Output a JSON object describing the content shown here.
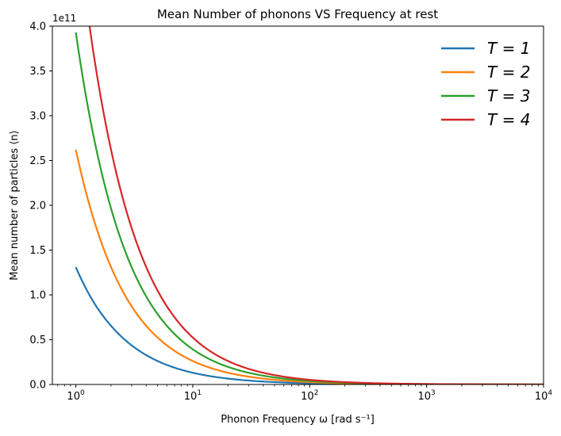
{
  "chart_data": {
    "type": "line",
    "title": "Mean Number of phonons VS Frequency at rest",
    "xlabel": "Phonon Frequency ω [rad s⁻¹]",
    "ylabel": "Mean number of particles ⟨n⟩",
    "y_offset_label": "1e11",
    "x_scale": "log",
    "xlim": [
      0.63,
      10000
    ],
    "ylim": [
      0,
      400000000000.0
    ],
    "x_ticks": [
      {
        "value": 1,
        "base": "10",
        "exp": "0"
      },
      {
        "value": 10,
        "base": "10",
        "exp": "1"
      },
      {
        "value": 100,
        "base": "10",
        "exp": "2"
      },
      {
        "value": 1000,
        "base": "10",
        "exp": "3"
      },
      {
        "value": 10000,
        "base": "10",
        "exp": "4"
      }
    ],
    "y_ticks": [
      {
        "value": 0,
        "label": "0.0"
      },
      {
        "value": 50000000000.0,
        "label": "0.5"
      },
      {
        "value": 100000000000.0,
        "label": "1.0"
      },
      {
        "value": 150000000000.0,
        "label": "1.5"
      },
      {
        "value": 200000000000.0,
        "label": "2.0"
      },
      {
        "value": 250000000000.0,
        "label": "2.5"
      },
      {
        "value": 300000000000.0,
        "label": "3.0"
      },
      {
        "value": 350000000000.0,
        "label": "3.5"
      },
      {
        "value": 400000000000.0,
        "label": "4.0"
      }
    ],
    "grid": false,
    "legend_position": "top-right",
    "series": [
      {
        "name": "T = 1",
        "color": "#1f77b4",
        "x": [
          1,
          1.5,
          2,
          3,
          5,
          10,
          20,
          50,
          100,
          1000,
          10000
        ],
        "y": [
          131000000000.0,
          87000000000.0,
          65500000000.0,
          43700000000.0,
          26200000000.0,
          13100000000.0,
          6550000000.0,
          2620000000.0,
          1310000000.0,
          131000000.0,
          13100000.0
        ]
      },
      {
        "name": "T = 2",
        "color": "#ff7f0e",
        "x": [
          1,
          1.5,
          2,
          3,
          5,
          10,
          20,
          50,
          100,
          1000,
          10000
        ],
        "y": [
          262000000000.0,
          174700000000.0,
          131000000000.0,
          87300000000.0,
          52400000000.0,
          26200000000.0,
          13100000000.0,
          5240000000.0,
          2620000000.0,
          262000000.0,
          26200000.0
        ]
      },
      {
        "name": "T = 3",
        "color": "#2ca02c",
        "x": [
          1,
          1.5,
          2,
          3,
          5,
          10,
          20,
          50,
          100,
          1000,
          10000
        ],
        "y": [
          393000000000.0,
          262000000000.0,
          196500000000.0,
          131000000000.0,
          78600000000.0,
          39300000000.0,
          19650000000.0,
          7860000000.0,
          3930000000.0,
          393000000.0,
          39300000.0
        ]
      },
      {
        "name": "T = 4",
        "color": "#d62728",
        "x": [
          1.31,
          1.5,
          2,
          3,
          5,
          10,
          20,
          50,
          100,
          1000,
          10000
        ],
        "y": [
          400000000000.0,
          349300000000.0,
          262000000000.0,
          174700000000.0,
          104800000000.0,
          52400000000.0,
          26200000000.0,
          10480000000.0,
          5240000000.0,
          524000000.0,
          52400000.0
        ]
      }
    ]
  }
}
